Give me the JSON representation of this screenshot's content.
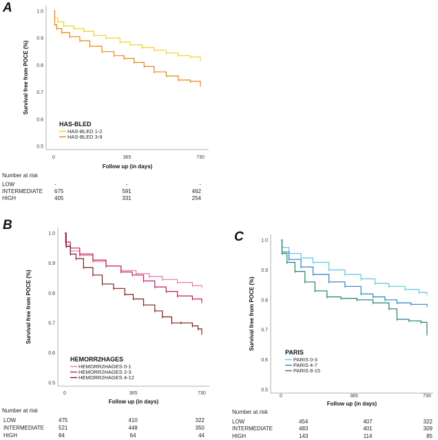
{
  "chart_data": [
    {
      "panel": "A",
      "type": "line",
      "subtype": "kaplan-meier",
      "ylabel": "Survival free from POCE (%)",
      "xlabel": "Follow up (in days)",
      "xticks": [
        "0",
        "365",
        "730"
      ],
      "yticks": [
        "0.5",
        "0.6",
        "0.7",
        "0.8",
        "0.9",
        "1.0"
      ],
      "xlim": [
        0,
        730
      ],
      "ylim": [
        0.5,
        1.0
      ],
      "legend_title": "HAS-BLED",
      "series": [
        {
          "name": "HAS-BLED 1-2",
          "color": "#f2d21b",
          "points": [
            [
              0,
              1.0
            ],
            [
              5,
              0.975
            ],
            [
              20,
              0.96
            ],
            [
              50,
              0.945
            ],
            [
              100,
              0.935
            ],
            [
              150,
              0.925
            ],
            [
              200,
              0.91
            ],
            [
              260,
              0.9
            ],
            [
              330,
              0.885
            ],
            [
              380,
              0.875
            ],
            [
              440,
              0.865
            ],
            [
              500,
              0.855
            ],
            [
              560,
              0.845
            ],
            [
              620,
              0.835
            ],
            [
              680,
              0.83
            ],
            [
              730,
              0.82
            ]
          ]
        },
        {
          "name": "HAS-BLED 3-9",
          "color": "#e8850f",
          "points": [
            [
              0,
              1.0
            ],
            [
              5,
              0.95
            ],
            [
              15,
              0.935
            ],
            [
              40,
              0.92
            ],
            [
              80,
              0.905
            ],
            [
              130,
              0.89
            ],
            [
              180,
              0.87
            ],
            [
              240,
              0.85
            ],
            [
              300,
              0.835
            ],
            [
              350,
              0.825
            ],
            [
              400,
              0.81
            ],
            [
              450,
              0.795
            ],
            [
              500,
              0.775
            ],
            [
              560,
              0.76
            ],
            [
              620,
              0.745
            ],
            [
              680,
              0.74
            ],
            [
              730,
              0.725
            ]
          ]
        }
      ],
      "risk_table": {
        "title": "Number at risk",
        "rows": [
          {
            "label": "LOW",
            "values": [
              "-",
              "-",
              "-"
            ]
          },
          {
            "label": "INTERMEDIATE",
            "values": [
              "675",
              "591",
              "462"
            ]
          },
          {
            "label": "HIGH",
            "values": [
              "405",
              "331",
              "254"
            ]
          }
        ]
      }
    },
    {
      "panel": "B",
      "type": "line",
      "subtype": "kaplan-meier",
      "ylabel": "Survival free from POCE (%)",
      "xlabel": "Follow up (in days)",
      "xticks": [
        "0",
        "365",
        "730"
      ],
      "yticks": [
        "0.5",
        "0.6",
        "0.7",
        "0.8",
        "0.9",
        "1.0"
      ],
      "xlim": [
        0,
        730
      ],
      "ylim": [
        0.5,
        1.0
      ],
      "legend_title": "HEMORR2HAGES",
      "series": [
        {
          "name": "HEMORR2HAGES 0-1",
          "color": "#e57ab0",
          "points": [
            [
              0,
              1.0
            ],
            [
              5,
              0.96
            ],
            [
              30,
              0.94
            ],
            [
              80,
              0.925
            ],
            [
              150,
              0.905
            ],
            [
              220,
              0.89
            ],
            [
              300,
              0.875
            ],
            [
              380,
              0.865
            ],
            [
              450,
              0.855
            ],
            [
              520,
              0.845
            ],
            [
              600,
              0.835
            ],
            [
              680,
              0.825
            ],
            [
              730,
              0.82
            ]
          ]
        },
        {
          "name": "HEMORR2HAGES 2-3",
          "color": "#c2185b",
          "points": [
            [
              0,
              1.0
            ],
            [
              5,
              0.97
            ],
            [
              30,
              0.95
            ],
            [
              80,
              0.93
            ],
            [
              150,
              0.91
            ],
            [
              220,
              0.89
            ],
            [
              300,
              0.87
            ],
            [
              360,
              0.86
            ],
            [
              420,
              0.84
            ],
            [
              480,
              0.82
            ],
            [
              540,
              0.805
            ],
            [
              600,
              0.79
            ],
            [
              680,
              0.78
            ],
            [
              730,
              0.77
            ]
          ]
        },
        {
          "name": "HEMORR2HAGES 4-12",
          "color": "#7a1c1c",
          "points": [
            [
              0,
              1.0
            ],
            [
              8,
              0.955
            ],
            [
              30,
              0.93
            ],
            [
              60,
              0.915
            ],
            [
              100,
              0.885
            ],
            [
              150,
              0.86
            ],
            [
              200,
              0.83
            ],
            [
              260,
              0.815
            ],
            [
              320,
              0.795
            ],
            [
              365,
              0.78
            ],
            [
              420,
              0.76
            ],
            [
              480,
              0.74
            ],
            [
              520,
              0.72
            ],
            [
              570,
              0.7
            ],
            [
              620,
              0.7
            ],
            [
              680,
              0.69
            ],
            [
              710,
              0.68
            ],
            [
              730,
              0.665
            ]
          ]
        }
      ],
      "risk_table": {
        "title": "Number at risk",
        "rows": [
          {
            "label": "LOW",
            "values": [
              "475",
              "410",
              "322"
            ]
          },
          {
            "label": "INTERMEDIATE",
            "values": [
              "521",
              "448",
              "350"
            ]
          },
          {
            "label": "HIGH",
            "values": [
              "84",
              "64",
              "44"
            ]
          }
        ]
      }
    },
    {
      "panel": "C",
      "type": "line",
      "subtype": "kaplan-meier",
      "ylabel": "Survival free from POCE (%)",
      "xlabel": "Follow up (in days)",
      "xticks": [
        "0",
        "365",
        "730"
      ],
      "yticks": [
        "0.5",
        "0.6",
        "0.7",
        "0.8",
        "0.9",
        "1.0"
      ],
      "xlim": [
        0,
        730
      ],
      "ylim": [
        0.5,
        1.0
      ],
      "legend_title": "PARIS",
      "series": [
        {
          "name": "PARIS 0-3",
          "color": "#5cc6df",
          "points": [
            [
              0,
              1.0
            ],
            [
              5,
              0.975
            ],
            [
              40,
              0.955
            ],
            [
              100,
              0.94
            ],
            [
              160,
              0.925
            ],
            [
              240,
              0.9
            ],
            [
              320,
              0.885
            ],
            [
              400,
              0.87
            ],
            [
              470,
              0.855
            ],
            [
              540,
              0.845
            ],
            [
              620,
              0.835
            ],
            [
              690,
              0.825
            ],
            [
              730,
              0.82
            ]
          ]
        },
        {
          "name": "PARIS 4-7",
          "color": "#2a7fc4",
          "points": [
            [
              0,
              1.0
            ],
            [
              5,
              0.96
            ],
            [
              40,
              0.935
            ],
            [
              100,
              0.91
            ],
            [
              160,
              0.885
            ],
            [
              240,
              0.86
            ],
            [
              320,
              0.845
            ],
            [
              400,
              0.82
            ],
            [
              460,
              0.81
            ],
            [
              520,
              0.8
            ],
            [
              580,
              0.79
            ],
            [
              650,
              0.785
            ],
            [
              730,
              0.78
            ]
          ]
        },
        {
          "name": "PARIS 8-15",
          "color": "#1d7f6f",
          "points": [
            [
              0,
              1.0
            ],
            [
              5,
              0.955
            ],
            [
              30,
              0.925
            ],
            [
              70,
              0.895
            ],
            [
              120,
              0.86
            ],
            [
              170,
              0.83
            ],
            [
              230,
              0.81
            ],
            [
              300,
              0.805
            ],
            [
              380,
              0.8
            ],
            [
              460,
              0.79
            ],
            [
              540,
              0.77
            ],
            [
              580,
              0.735
            ],
            [
              640,
              0.73
            ],
            [
              700,
              0.725
            ],
            [
              730,
              0.685
            ]
          ]
        }
      ],
      "risk_table": {
        "title": "Number at risk",
        "rows": [
          {
            "label": "LOW",
            "values": [
              "454",
              "407",
              "322"
            ]
          },
          {
            "label": "INTERMEDIATE",
            "values": [
              "483",
              "401",
              "309"
            ]
          },
          {
            "label": "HIGH",
            "values": [
              "143",
              "114",
              "85"
            ]
          }
        ]
      }
    }
  ]
}
